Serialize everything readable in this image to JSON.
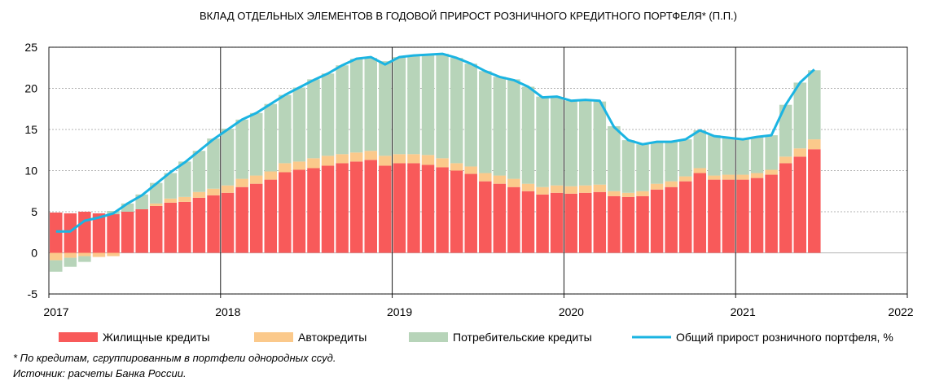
{
  "chart_data": {
    "type": "bar",
    "title": "ВКЛАД ОТДЕЛЬНЫХ ЭЛЕМЕНТОВ В ГОДОВОЙ ПРИРОСТ РОЗНИЧНОГО КРЕДИТНОГО ПОРТФЕЛЯ* (П.П.)",
    "xlabel": "",
    "ylabel": "",
    "ylim": [
      -5,
      25
    ],
    "yticks": [
      "25",
      "20",
      "15",
      "10",
      "5",
      "0",
      "-5"
    ],
    "xticks": [
      "2017",
      "2018",
      "2019",
      "2020",
      "2021",
      "2022"
    ],
    "x": [
      "2017-01",
      "2017-02",
      "2017-03",
      "2017-04",
      "2017-05",
      "2017-06",
      "2017-07",
      "2017-08",
      "2017-09",
      "2017-10",
      "2017-11",
      "2017-12",
      "2018-01",
      "2018-02",
      "2018-03",
      "2018-04",
      "2018-05",
      "2018-06",
      "2018-07",
      "2018-08",
      "2018-09",
      "2018-10",
      "2018-11",
      "2018-12",
      "2019-01",
      "2019-02",
      "2019-03",
      "2019-04",
      "2019-05",
      "2019-06",
      "2019-07",
      "2019-08",
      "2019-09",
      "2019-10",
      "2019-11",
      "2019-12",
      "2020-01",
      "2020-02",
      "2020-03",
      "2020-04",
      "2020-05",
      "2020-06",
      "2020-07",
      "2020-08",
      "2020-09",
      "2020-10",
      "2020-11",
      "2020-12",
      "2021-01",
      "2021-02",
      "2021-03",
      "2021-04",
      "2021-05",
      "2021-06"
    ],
    "series": [
      {
        "name": "Жилищные кредиты",
        "type": "bar",
        "color": "#f85a5a",
        "values": [
          4.9,
          4.8,
          5.0,
          4.8,
          4.7,
          5.0,
          5.3,
          5.7,
          6.1,
          6.2,
          6.7,
          7.0,
          7.3,
          8.0,
          8.4,
          8.9,
          9.8,
          10.1,
          10.3,
          10.6,
          10.9,
          11.1,
          11.3,
          10.6,
          10.9,
          10.9,
          10.7,
          10.4,
          10.0,
          9.6,
          8.7,
          8.4,
          8.0,
          7.5,
          7.1,
          7.3,
          7.2,
          7.3,
          7.4,
          6.9,
          6.8,
          6.9,
          7.7,
          8.0,
          8.7,
          9.7,
          8.9,
          8.9,
          8.9,
          9.1,
          9.5,
          10.9,
          11.7,
          12.6
        ]
      },
      {
        "name": "Автокредиты",
        "type": "bar",
        "color": "#fbc98b",
        "values": [
          -0.9,
          -0.6,
          -0.4,
          -0.5,
          -0.4,
          0.0,
          0.0,
          0.3,
          0.5,
          0.6,
          0.7,
          0.8,
          0.9,
          1.0,
          1.0,
          1.0,
          1.1,
          1.0,
          1.2,
          1.2,
          1.1,
          1.1,
          1.1,
          1.2,
          1.1,
          1.1,
          1.2,
          1.1,
          0.9,
          0.9,
          1.0,
          1.0,
          1.0,
          0.9,
          0.9,
          0.9,
          0.9,
          0.9,
          0.9,
          0.6,
          0.5,
          0.6,
          0.7,
          0.7,
          0.6,
          0.6,
          0.5,
          0.6,
          0.6,
          0.6,
          0.6,
          0.8,
          1.0,
          1.2
        ]
      },
      {
        "name": "Потребительские кредиты",
        "type": "bar",
        "color": "#b7d4b9",
        "values": [
          -1.4,
          -1.1,
          -0.7,
          0.0,
          0.4,
          1.0,
          1.8,
          2.5,
          3.1,
          4.3,
          5.0,
          6.1,
          6.9,
          7.2,
          7.6,
          8.2,
          8.3,
          9.0,
          9.6,
          10.0,
          10.8,
          11.4,
          11.3,
          11.5,
          11.8,
          11.9,
          12.2,
          12.7,
          12.8,
          12.5,
          12.4,
          12.0,
          12.1,
          11.8,
          11.0,
          10.7,
          10.4,
          10.4,
          10.1,
          7.9,
          6.4,
          5.7,
          5.1,
          4.8,
          4.5,
          4.6,
          4.9,
          4.5,
          4.3,
          4.4,
          4.2,
          6.3,
          8.0,
          8.4
        ]
      },
      {
        "name": "Общий прирост розничного портфеля, %",
        "type": "line",
        "color": "#1bb4e2",
        "values": [
          2.6,
          2.6,
          3.9,
          4.3,
          4.8,
          6.0,
          7.0,
          8.4,
          9.8,
          11.0,
          12.4,
          13.8,
          15.0,
          16.2,
          17.0,
          18.1,
          19.2,
          20.1,
          21.0,
          21.8,
          22.8,
          23.6,
          23.8,
          22.9,
          23.8,
          24.0,
          24.1,
          24.2,
          23.7,
          23.0,
          22.1,
          21.4,
          21.0,
          20.2,
          18.9,
          19.0,
          18.5,
          18.6,
          18.5,
          15.3,
          13.7,
          13.2,
          13.5,
          13.5,
          13.8,
          14.9,
          14.2,
          14.0,
          13.8,
          14.1,
          14.3,
          18.0,
          20.7,
          22.3
        ]
      }
    ],
    "legend_position": "bottom",
    "grid": true
  },
  "notes": {
    "footnote": "* По кредитам, сгруппированным в портфели однородных ссуд.",
    "source": "Источник: расчеты Банка России."
  }
}
